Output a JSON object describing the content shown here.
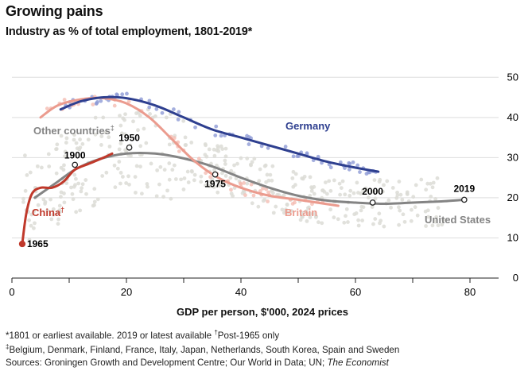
{
  "title": "Growing pains",
  "subtitle": "Industry as % of total employment, 1801-2019*",
  "colors": {
    "germany": "#2e3f8f",
    "britain": "#eb9b8e",
    "china": "#c0392b",
    "other": "#848484",
    "scatter_light": "#dcdcd6",
    "scatter_germany": "#8e9bd6",
    "scatter_britain": "#f3b8ad",
    "grid": "#dddddd",
    "axis": "#222222"
  },
  "footnotes": {
    "line1_a": "*1801 or earliest available. 2019 or latest available ",
    "line1_mark": "†",
    "line1_b": "Post-1965 only",
    "line2_mark": "‡",
    "line2_text": "Belgium, Denmark, Finland, France, Italy, Japan, Netherlands, South Korea, Spain and Sweden",
    "line3_text": "Sources: Groningen Growth and Development Centre; Our World in Data; UN; ",
    "line3_italic": "The Economist"
  },
  "chart_data": {
    "type": "scatter",
    "title": "Growing pains",
    "subtitle": "Industry as % of total employment, 1801-2019*",
    "xlabel": "GDP per person, $'000, 2024 prices",
    "ylabel": "",
    "xlim": [
      0,
      85
    ],
    "ylim": [
      0,
      55
    ],
    "x_ticks": [
      0,
      20,
      40,
      60,
      80
    ],
    "y_ticks": [
      0,
      10,
      20,
      30,
      40,
      50
    ],
    "y_axis_side": "right",
    "series": [
      {
        "name": "Germany",
        "color_key": "germany",
        "x": [
          8.5,
          12,
          16,
          20,
          25,
          30,
          35,
          40,
          45,
          50,
          55,
          60,
          64
        ],
        "y": [
          42,
          44,
          45,
          44.8,
          43,
          40,
          37,
          35,
          33,
          31,
          29,
          27.5,
          26.5
        ]
      },
      {
        "name": "Britain",
        "color_key": "britain",
        "x": [
          5,
          8,
          12,
          16,
          20,
          24,
          28,
          32,
          36,
          40,
          45,
          50,
          57
        ],
        "y": [
          40,
          43,
          44.5,
          44.8,
          43.5,
          40,
          34.5,
          29,
          25,
          22.5,
          20.5,
          19.5,
          18
        ]
      },
      {
        "name": "China†",
        "color_key": "china",
        "x": [
          1.8,
          2.5,
          3.5,
          5,
          7,
          9,
          11,
          13.5,
          16,
          17.5
        ],
        "y": [
          8.5,
          16,
          21,
          22.5,
          22.5,
          24,
          27,
          28.5,
          30,
          31
        ]
      },
      {
        "name": "Other countries‡",
        "color_key": "other",
        "x": [
          4,
          8,
          11,
          15,
          20,
          25,
          30,
          35,
          40,
          45,
          50,
          55,
          60,
          65,
          70,
          75,
          79
        ],
        "y": [
          20,
          24,
          27,
          29.5,
          31,
          31,
          29.8,
          27.8,
          25,
          22.5,
          20.5,
          19.3,
          18.8,
          18.5,
          18.8,
          19.1,
          19.5
        ]
      }
    ],
    "annotations": [
      {
        "label": "1965",
        "x": 1.8,
        "y": 8.5,
        "series": "China†"
      },
      {
        "label": "1900",
        "x": 11,
        "y": 28.2,
        "series": "Other countries‡"
      },
      {
        "label": "1950",
        "x": 20.5,
        "y": 32.5,
        "series": "Other countries‡"
      },
      {
        "label": "1975",
        "x": 35.5,
        "y": 25.8,
        "series": "Britain"
      },
      {
        "label": "2000",
        "x": 63,
        "y": 18.8,
        "series": "United States"
      },
      {
        "label": "2019",
        "x": 79,
        "y": 19.5,
        "series": "United States"
      }
    ],
    "legend": [
      {
        "text": "Germany",
        "placement": "upper-middle",
        "color_key": "germany"
      },
      {
        "text": "Britain",
        "placement": "middle-right",
        "color_key": "britain"
      },
      {
        "text": "China",
        "sup": "†",
        "placement": "left",
        "color_key": "china"
      },
      {
        "text": "Other countries",
        "sup": "‡",
        "placement": "upper-left",
        "color_key": "other"
      },
      {
        "text": "United States",
        "placement": "lower-right",
        "color_key": "other"
      }
    ]
  }
}
